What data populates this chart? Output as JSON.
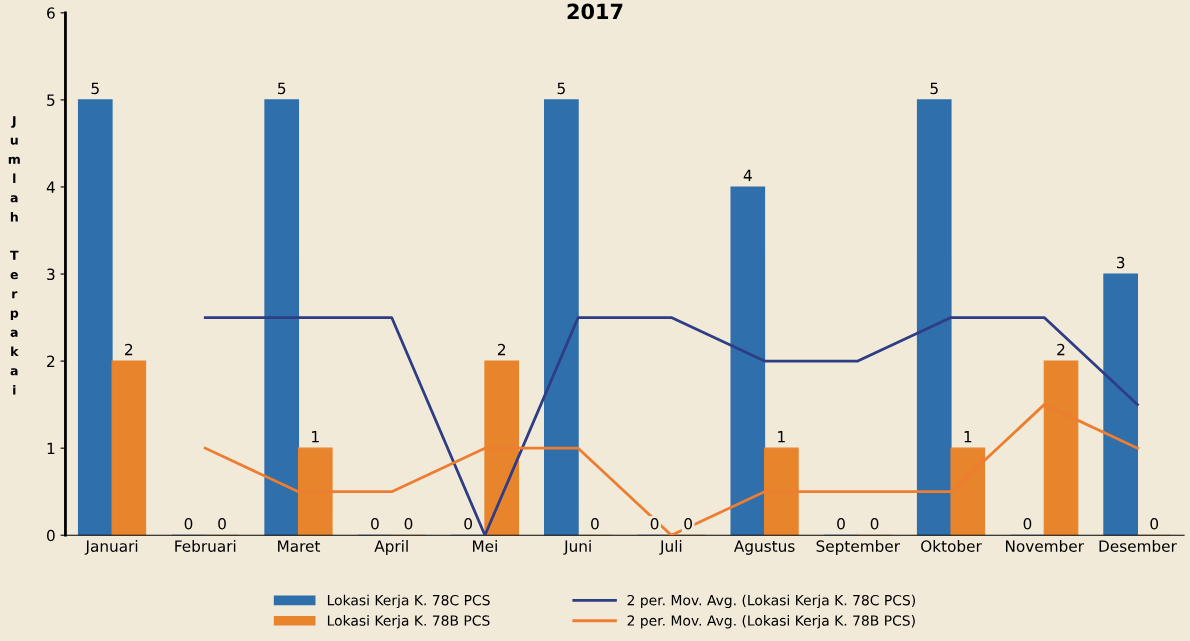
{
  "chart_data": {
    "type": "bar",
    "title": "2017",
    "ylabel": "Jumlah Terpakai",
    "categories": [
      "Januari",
      "Februari",
      "Maret",
      "April",
      "Mei",
      "Juni",
      "Juli",
      "Agustus",
      "September",
      "Oktober",
      "November",
      "Desember"
    ],
    "series": [
      {
        "name": "Lokasi Kerja K. 78C PCS",
        "color": "#2f6fab",
        "values": [
          5,
          0,
          5,
          0,
          0,
          5,
          0,
          4,
          0,
          5,
          0,
          3
        ],
        "value_labels": [
          "5",
          "0",
          "5",
          "0",
          "0",
          "5",
          "0",
          "4",
          "0",
          "5",
          "0",
          "3"
        ]
      },
      {
        "name": "Lokasi Kerja K. 78B PCS",
        "color": "#e8842c",
        "values": [
          2,
          0,
          1,
          0,
          2,
          0,
          0,
          1,
          0,
          1,
          2,
          0
        ],
        "value_labels": [
          "2",
          "0",
          "1",
          "0",
          "2",
          "0",
          "0",
          "1",
          "0",
          "1",
          "2",
          "0"
        ]
      },
      {
        "name": "2 per. Mov. Avg. (Lokasi Kerja K. 78C PCS)",
        "type": "line",
        "color": "#2e3d84",
        "values": [
          null,
          2.5,
          2.5,
          2.5,
          0,
          2.5,
          2.5,
          2,
          2,
          2.5,
          2.5,
          1.5
        ]
      },
      {
        "name": "2 per. Mov. Avg. (Lokasi Kerja K. 78B PCS)",
        "type": "line",
        "color": "#ed7d31",
        "values": [
          null,
          1,
          0.5,
          0.5,
          1,
          1,
          0,
          0.5,
          0.5,
          0.5,
          1.5,
          1
        ]
      }
    ],
    "ylim": [
      0,
      6
    ],
    "yticks": [
      0,
      1,
      2,
      3,
      4,
      5,
      6
    ],
    "grid": false,
    "legend": "bottom"
  }
}
